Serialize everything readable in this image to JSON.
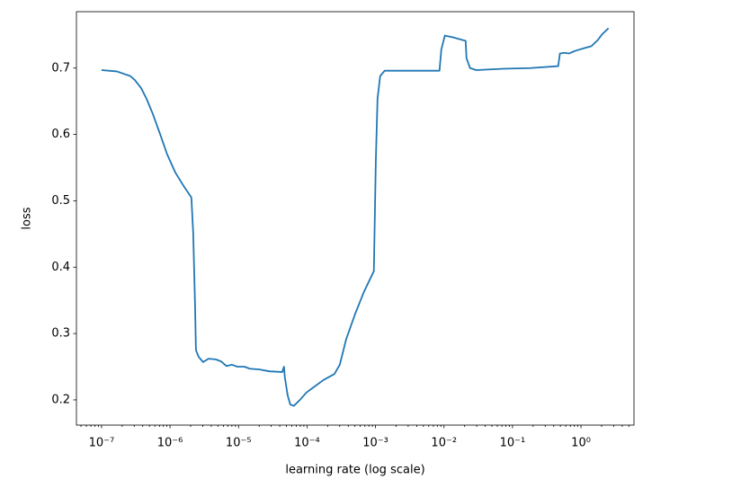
{
  "chart_data": {
    "type": "line",
    "xlabel": "learning rate (log scale)",
    "ylabel": "loss",
    "xscale": "log",
    "color": "#1f77b4",
    "x": [
      1e-07,
      1.67e-07,
      2.63e-07,
      3.06e-07,
      3.78e-07,
      4.53e-07,
      5.6e-07,
      7.13e-07,
      9.08e-07,
      1.19e-06,
      1.61e-06,
      2.05e-06,
      2.18e-06,
      2.32e-06,
      2.39e-06,
      2.61e-06,
      3.04e-06,
      3.65e-06,
      4.65e-06,
      5.56e-06,
      6.67e-06,
      8e-06,
      9.6e-06,
      1.22e-05,
      1.46e-05,
      1.98e-05,
      2.84e-05,
      4.35e-05,
      4.61e-05,
      4.75e-05,
      5.21e-05,
      5.7e-05,
      6.43e-05,
      7.71e-05,
      9.8e-05,
      0.000121,
      0.000174,
      0.000251,
      0.000301,
      0.000372,
      0.000502,
      0.000679,
      0.000946,
      0.00101,
      0.00107,
      0.00117,
      0.00136,
      0.00195,
      0.00484,
      0.00859,
      0.00914,
      0.0103,
      0.0139,
      0.0207,
      0.0213,
      0.024,
      0.0296,
      0.0735,
      0.182,
      0.465,
      0.493,
      0.574,
      0.667,
      0.824,
      1.11,
      1.42,
      1.75,
      2.04,
      2.52
    ],
    "values": [
      0.697,
      0.695,
      0.688,
      0.682,
      0.67,
      0.654,
      0.631,
      0.601,
      0.57,
      0.543,
      0.521,
      0.505,
      0.451,
      0.342,
      0.275,
      0.265,
      0.257,
      0.262,
      0.261,
      0.258,
      0.251,
      0.253,
      0.25,
      0.25,
      0.247,
      0.246,
      0.243,
      0.242,
      0.25,
      0.234,
      0.207,
      0.193,
      0.191,
      0.199,
      0.211,
      0.218,
      0.23,
      0.239,
      0.253,
      0.291,
      0.329,
      0.363,
      0.394,
      0.559,
      0.654,
      0.688,
      0.696,
      0.696,
      0.696,
      0.696,
      0.728,
      0.749,
      0.746,
      0.741,
      0.715,
      0.7,
      0.697,
      0.699,
      0.7,
      0.703,
      0.722,
      0.723,
      0.722,
      0.726,
      0.73,
      0.733,
      0.742,
      0.751,
      0.76
    ],
    "xlim": [
      4.3e-08,
      5.94
    ],
    "ylim": [
      0.162,
      0.785
    ],
    "xticks": [
      {
        "value": 1e-07,
        "label": "10⁻⁷"
      },
      {
        "value": 1e-06,
        "label": "10⁻⁶"
      },
      {
        "value": 1e-05,
        "label": "10⁻⁵"
      },
      {
        "value": 0.0001,
        "label": "10⁻⁴"
      },
      {
        "value": 0.001,
        "label": "10⁻³"
      },
      {
        "value": 0.01,
        "label": "10⁻²"
      },
      {
        "value": 0.1,
        "label": "10⁻¹"
      },
      {
        "value": 1,
        "label": "10⁰"
      }
    ],
    "yticks": [
      0.2,
      0.3,
      0.4,
      0.5,
      0.6,
      0.7
    ]
  }
}
